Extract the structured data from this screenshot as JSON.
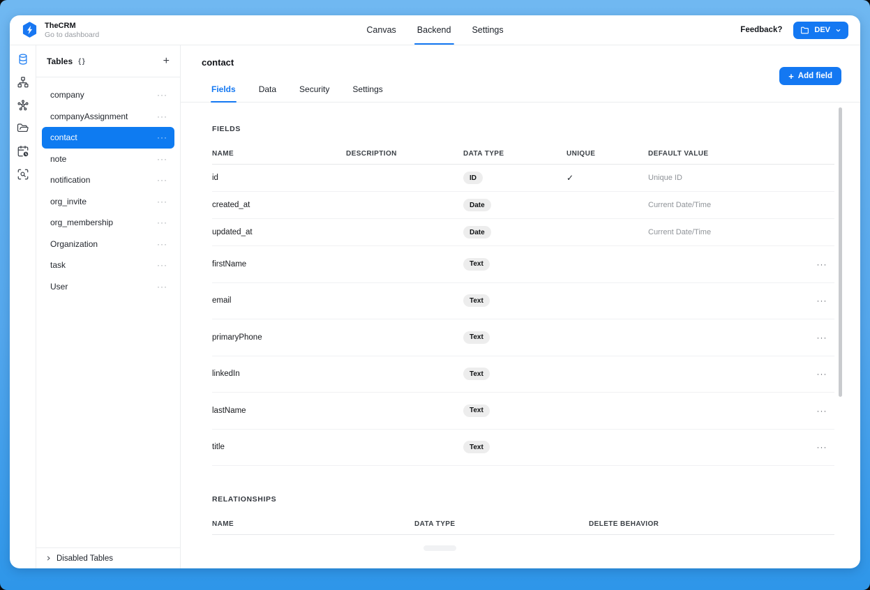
{
  "colors": {
    "accent": "#1478f2",
    "selected_table_bg": "#0e7bf1",
    "frame_top": "#70b8f1",
    "frame_bottom": "#2e96e9"
  },
  "glyphs": {
    "more": "···",
    "check": "✓",
    "plus": "+",
    "code_braces": "{}"
  },
  "header": {
    "app_name": "TheCRM",
    "app_subtitle": "Go to dashboard",
    "nav_tabs": [
      {
        "label": "Canvas",
        "active": false
      },
      {
        "label": "Backend",
        "active": true
      },
      {
        "label": "Settings",
        "active": false
      }
    ],
    "feedback_label": "Feedback?",
    "env_button": {
      "label": "DEV",
      "icon": "folder"
    }
  },
  "rail": {
    "icons": [
      "database",
      "sitemap",
      "network",
      "folder",
      "calendar-clock",
      "scan-search"
    ],
    "active_icon": "database"
  },
  "sidebar": {
    "title": "Tables",
    "title_icon": "code-braces",
    "tables": [
      "company",
      "companyAssignment",
      "contact",
      "note",
      "notification",
      "org_invite",
      "org_membership",
      "Organization",
      "task",
      "User"
    ],
    "selected_table": "contact",
    "disabled_tables_label": "Disabled Tables"
  },
  "main": {
    "title": "contact",
    "tabs": [
      {
        "label": "Fields",
        "active": true
      },
      {
        "label": "Data",
        "active": false
      },
      {
        "label": "Security",
        "active": false
      },
      {
        "label": "Settings",
        "active": false
      }
    ],
    "add_field_button": "Add field",
    "fields": {
      "section_title": "FIELDS",
      "columns": [
        "NAME",
        "DESCRIPTION",
        "DATA TYPE",
        "UNIQUE",
        "DEFAULT VALUE"
      ],
      "rows": [
        {
          "name": "id",
          "description": "",
          "data_type": "ID",
          "unique": true,
          "default_value": "Unique ID",
          "menu": false,
          "row_size": "short"
        },
        {
          "name": "created_at",
          "description": "",
          "data_type": "Date",
          "unique": false,
          "default_value": "Current Date/Time",
          "menu": false,
          "row_size": "short"
        },
        {
          "name": "updated_at",
          "description": "",
          "data_type": "Date",
          "unique": false,
          "default_value": "Current Date/Time",
          "menu": false,
          "row_size": "short"
        },
        {
          "name": "firstName",
          "description": "",
          "data_type": "Text",
          "unique": false,
          "default_value": "",
          "menu": true,
          "row_size": "tall"
        },
        {
          "name": "email",
          "description": "",
          "data_type": "Text",
          "unique": false,
          "default_value": "",
          "menu": true,
          "row_size": "tall"
        },
        {
          "name": "primaryPhone",
          "description": "",
          "data_type": "Text",
          "unique": false,
          "default_value": "",
          "menu": true,
          "row_size": "tall"
        },
        {
          "name": "linkedIn",
          "description": "",
          "data_type": "Text",
          "unique": false,
          "default_value": "",
          "menu": true,
          "row_size": "tall"
        },
        {
          "name": "lastName",
          "description": "",
          "data_type": "Text",
          "unique": false,
          "default_value": "",
          "menu": true,
          "row_size": "tall"
        },
        {
          "name": "title",
          "description": "",
          "data_type": "Text",
          "unique": false,
          "default_value": "",
          "menu": true,
          "row_size": "tall"
        }
      ]
    },
    "relationships": {
      "section_title": "RELATIONSHIPS",
      "columns": [
        "NAME",
        "DATA TYPE",
        "DELETE BEHAVIOR"
      ]
    }
  }
}
